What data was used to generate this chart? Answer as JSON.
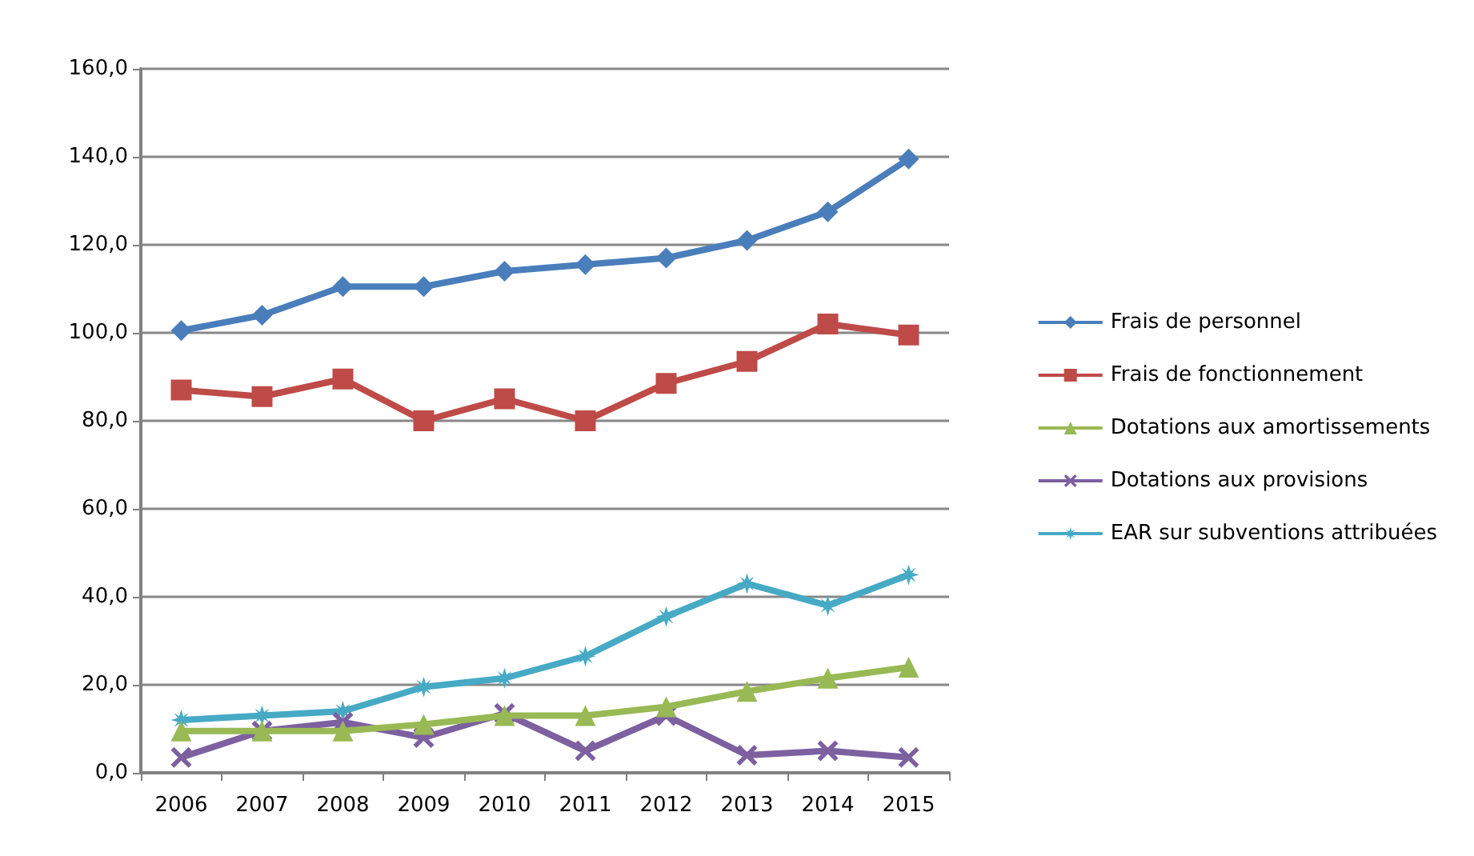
{
  "chart_data": {
    "type": "line",
    "categories": [
      "2006",
      "2007",
      "2008",
      "2009",
      "2010",
      "2011",
      "2012",
      "2013",
      "2014",
      "2015"
    ],
    "series": [
      {
        "name": "Frais de personnel",
        "color": "#4a7ebb",
        "marker": "diamond",
        "values": [
          100.5,
          104,
          110.5,
          110.5,
          114,
          115.5,
          117,
          121,
          127.5,
          139.5
        ]
      },
      {
        "name": "Frais de fonctionnement",
        "color": "#be4b48",
        "marker": "square",
        "values": [
          87,
          85.5,
          89.5,
          80,
          85,
          80,
          88.5,
          93.5,
          102,
          99.5
        ]
      },
      {
        "name": "Dotations aux amortissements",
        "color": "#98b954",
        "marker": "triangle",
        "values": [
          9.5,
          9.5,
          9.5,
          11,
          13,
          13,
          15,
          18.5,
          21.5,
          24
        ]
      },
      {
        "name": "Dotations aux provisions",
        "color": "#7d60a0",
        "marker": "cross",
        "values": [
          3.5,
          9.5,
          11.5,
          8,
          13.5,
          5,
          13,
          4,
          5,
          3.5
        ]
      },
      {
        "name": "EAR sur subventions attribuées",
        "color": "#46aac5",
        "marker": "star",
        "values": [
          12,
          13,
          14,
          19.5,
          21.5,
          26.5,
          35.5,
          43,
          38,
          45
        ]
      }
    ],
    "ylim": [
      0,
      160
    ],
    "yticks": [
      {
        "value": 0,
        "label": "0,0"
      },
      {
        "value": 20,
        "label": "20,0"
      },
      {
        "value": 40,
        "label": "40,0"
      },
      {
        "value": 60,
        "label": "60,0"
      },
      {
        "value": 80,
        "label": "80,0"
      },
      {
        "value": 100,
        "label": "100,0"
      },
      {
        "value": 120,
        "label": "120,0"
      },
      {
        "value": 140,
        "label": "140,0"
      },
      {
        "value": 160,
        "label": "160,0"
      }
    ],
    "grid": "y",
    "legend": "right"
  }
}
